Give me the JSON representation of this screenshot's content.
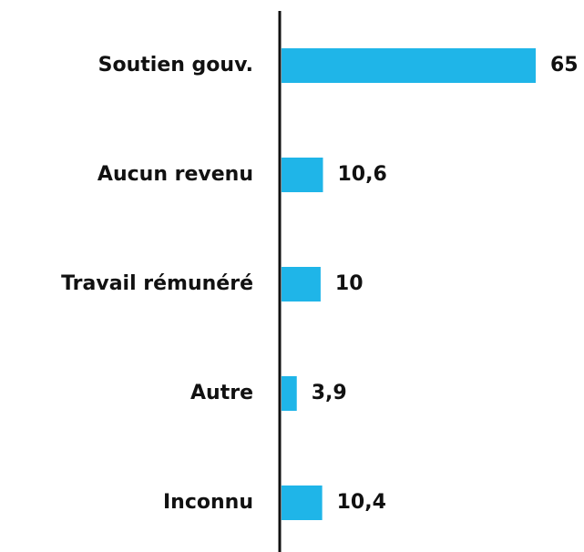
{
  "chart_data": {
    "type": "bar",
    "orientation": "horizontal",
    "categories": [
      "Soutien gouv.",
      "Aucun revenu",
      "Travail rémunéré",
      "Autre",
      "Inconnu"
    ],
    "values": [
      65,
      10.6,
      10,
      3.9,
      10.4
    ],
    "value_labels": [
      "65",
      "10,6",
      "10",
      "3,9",
      "10,4"
    ],
    "color": "#1fb5e8"
  }
}
